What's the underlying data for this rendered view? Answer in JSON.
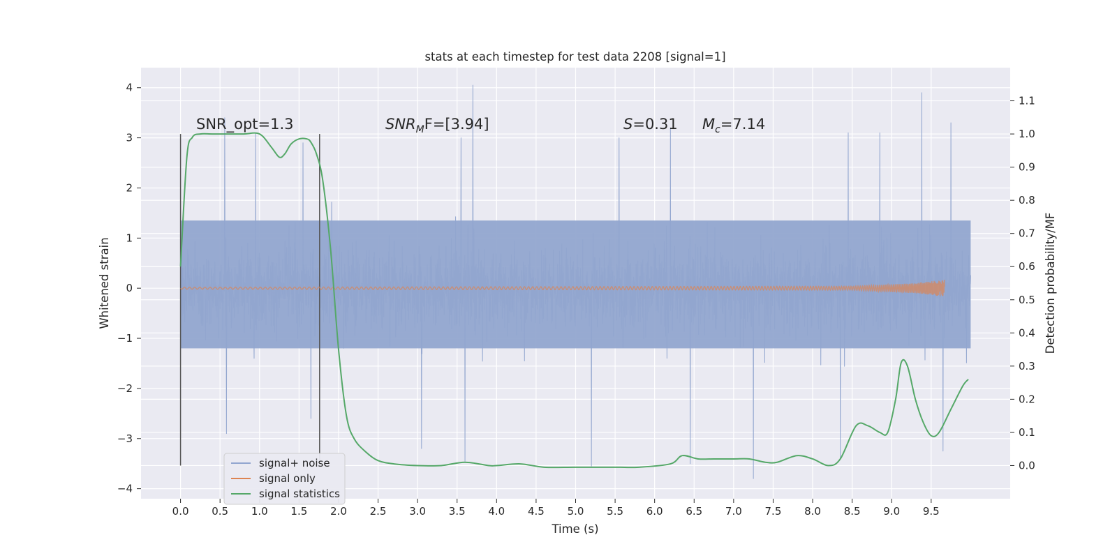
{
  "chart_data": {
    "type": "line",
    "title": "stats at each timestep for test data 2208 [signal=1]",
    "xlabel": "Time (s)",
    "ylabel": "Whitened strain",
    "y2label": "Detection probability/MF",
    "xlim": [
      -0.5,
      10.5
    ],
    "ylim": [
      -4.2,
      4.4
    ],
    "y2lim": [
      -0.1,
      1.2
    ],
    "x_ticks": [
      "0.0",
      "0.5",
      "1.0",
      "1.5",
      "2.0",
      "2.5",
      "3.0",
      "3.5",
      "4.0",
      "4.5",
      "5.0",
      "5.5",
      "6.0",
      "6.5",
      "7.0",
      "7.5",
      "8.0",
      "8.5",
      "9.0",
      "9.5"
    ],
    "y_ticks": [
      "4",
      "3",
      "2",
      "1",
      "0",
      "−1",
      "−2",
      "−3",
      "−4"
    ],
    "y2_ticks": [
      "1.1",
      "1.0",
      "0.9",
      "0.8",
      "0.7",
      "0.6",
      "0.5",
      "0.4",
      "0.3",
      "0.2",
      "0.1",
      "0.0"
    ],
    "grid": true,
    "legend_position": "lower-left",
    "annotations": {
      "snr_opt": "SNR_opt=1.3",
      "snr_mf_prefix": "SNR",
      "snr_mf_sub": "M",
      "snr_mf_suffix": "F=[3.94]",
      "s_var": "S",
      "s_value": "=0.31",
      "mc_var": "M",
      "mc_sub": "c",
      "mc_value": "=7.14"
    },
    "vertical_lines_x": [
      0.0,
      1.76
    ],
    "series": [
      {
        "name": "signal+ noise",
        "color": "#92a6cf",
        "x_range": [
          0.0,
          10.0
        ],
        "core_band": [
          -1.2,
          1.35
        ],
        "typical_range": [
          -2.0,
          2.0
        ],
        "peaks_high": [
          [
            0.56,
            3.4
          ],
          [
            0.95,
            3.1
          ],
          [
            1.55,
            2.9
          ],
          [
            3.7,
            4.05
          ],
          [
            3.55,
            3.0
          ],
          [
            5.55,
            3.0
          ],
          [
            6.2,
            3.2
          ],
          [
            8.45,
            3.1
          ],
          [
            8.85,
            3.1
          ],
          [
            9.38,
            3.9
          ],
          [
            9.75,
            3.3
          ]
        ],
        "peaks_low": [
          [
            0.58,
            -2.9
          ],
          [
            1.65,
            -2.6
          ],
          [
            3.05,
            -3.2
          ],
          [
            3.6,
            -3.45
          ],
          [
            5.2,
            -3.55
          ],
          [
            6.45,
            -3.5
          ],
          [
            7.25,
            -3.8
          ],
          [
            8.35,
            -3.4
          ],
          [
            9.65,
            -3.25
          ]
        ]
      },
      {
        "name": "signal only",
        "color": "#dd8452",
        "x_range": [
          0.0,
          9.67
        ],
        "amplitude_envelope": [
          [
            0.0,
            0.02
          ],
          [
            8.5,
            0.04
          ],
          [
            9.3,
            0.1
          ],
          [
            9.67,
            0.17
          ]
        ]
      },
      {
        "name": "signal statistics",
        "color": "#55a868",
        "axis": "right",
        "x": [
          0.0,
          0.08,
          0.15,
          0.25,
          0.4,
          0.6,
          0.8,
          1.0,
          1.15,
          1.25,
          1.32,
          1.4,
          1.5,
          1.6,
          1.65,
          1.72,
          1.8,
          1.9,
          2.0,
          2.1,
          2.2,
          2.35,
          2.5,
          2.7,
          3.0,
          3.3,
          3.6,
          3.9,
          4.0,
          4.3,
          4.6,
          5.0,
          5.5,
          5.8,
          6.2,
          6.35,
          6.55,
          6.75,
          7.0,
          7.2,
          7.4,
          7.55,
          7.8,
          8.0,
          8.2,
          8.35,
          8.55,
          8.7,
          8.85,
          8.95,
          9.05,
          9.12,
          9.2,
          9.3,
          9.4,
          9.5,
          9.6,
          9.75,
          9.9,
          9.97
        ],
        "values": [
          0.6,
          0.93,
          0.99,
          1.0,
          1.0,
          1.0,
          1.0,
          1.0,
          0.96,
          0.93,
          0.94,
          0.97,
          0.985,
          0.985,
          0.975,
          0.94,
          0.86,
          0.65,
          0.35,
          0.15,
          0.08,
          0.04,
          0.015,
          0.005,
          0.0,
          0.0,
          0.01,
          0.0,
          0.0,
          0.005,
          -0.005,
          -0.005,
          -0.005,
          -0.005,
          0.005,
          0.03,
          0.02,
          0.02,
          0.02,
          0.02,
          0.01,
          0.01,
          0.03,
          0.02,
          0.0,
          0.02,
          0.12,
          0.12,
          0.1,
          0.1,
          0.2,
          0.31,
          0.3,
          0.2,
          0.13,
          0.09,
          0.1,
          0.17,
          0.24,
          0.26
        ]
      }
    ]
  }
}
